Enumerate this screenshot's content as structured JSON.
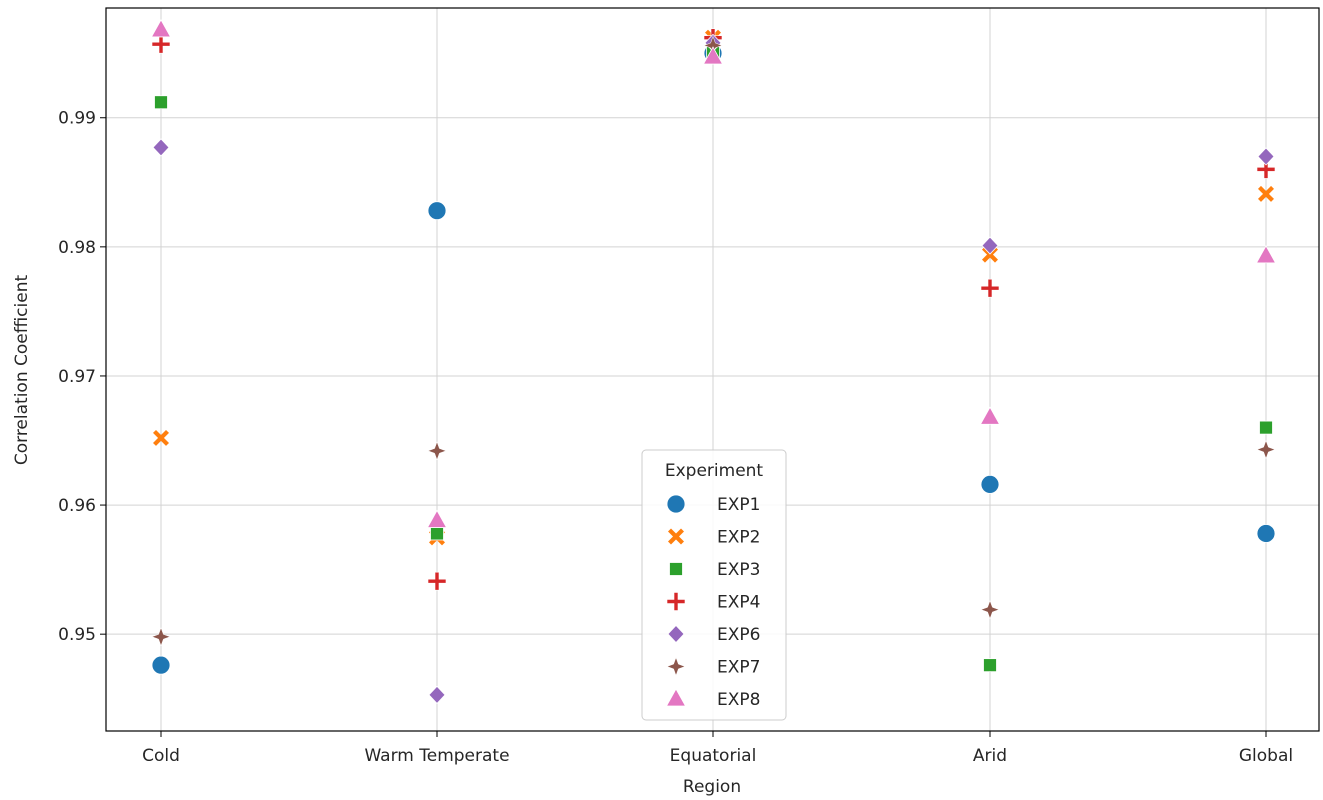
{
  "chart_data": {
    "type": "scatter",
    "title": "",
    "xlabel": "Region",
    "ylabel": "Correlation Coefficient",
    "categories": [
      "Cold",
      "Warm Temperate",
      "Equatorial",
      "Arid",
      "Global"
    ],
    "ylim": [
      0.9425,
      0.9985
    ],
    "yticks": [
      "0.95",
      "0.96",
      "0.97",
      "0.98",
      "0.99"
    ],
    "grid": true,
    "legend": {
      "title": "Experiment",
      "placement": "lower-center"
    },
    "series": [
      {
        "name": "EXP1",
        "marker": "circle",
        "color": "#1f77b4",
        "values": [
          0.9476,
          0.9828,
          0.995,
          0.9616,
          0.9578
        ]
      },
      {
        "name": "EXP2",
        "marker": "x",
        "color": "#ff7f0e",
        "values": [
          0.9652,
          0.9575,
          0.9962,
          0.9794,
          0.9841
        ]
      },
      {
        "name": "EXP3",
        "marker": "square",
        "color": "#2ca02c",
        "values": [
          0.9912,
          0.9578,
          0.995,
          0.9476,
          0.966
        ]
      },
      {
        "name": "EXP4",
        "marker": "plus",
        "color": "#d62728",
        "values": [
          0.9957,
          0.9541,
          0.9962,
          0.9768,
          0.986
        ]
      },
      {
        "name": "EXP6",
        "marker": "diamond",
        "color": "#9467bd",
        "values": [
          0.9877,
          0.9453,
          0.9958,
          0.9801,
          0.987
        ]
      },
      {
        "name": "EXP7",
        "marker": "star4",
        "color": "#8c564b",
        "values": [
          0.9498,
          0.9642,
          0.9956,
          0.9519,
          0.9643
        ]
      },
      {
        "name": "EXP8",
        "marker": "triangle",
        "color": "#e377c2",
        "values": [
          0.9968,
          0.9588,
          0.9947,
          0.9668,
          0.9793
        ]
      }
    ]
  }
}
